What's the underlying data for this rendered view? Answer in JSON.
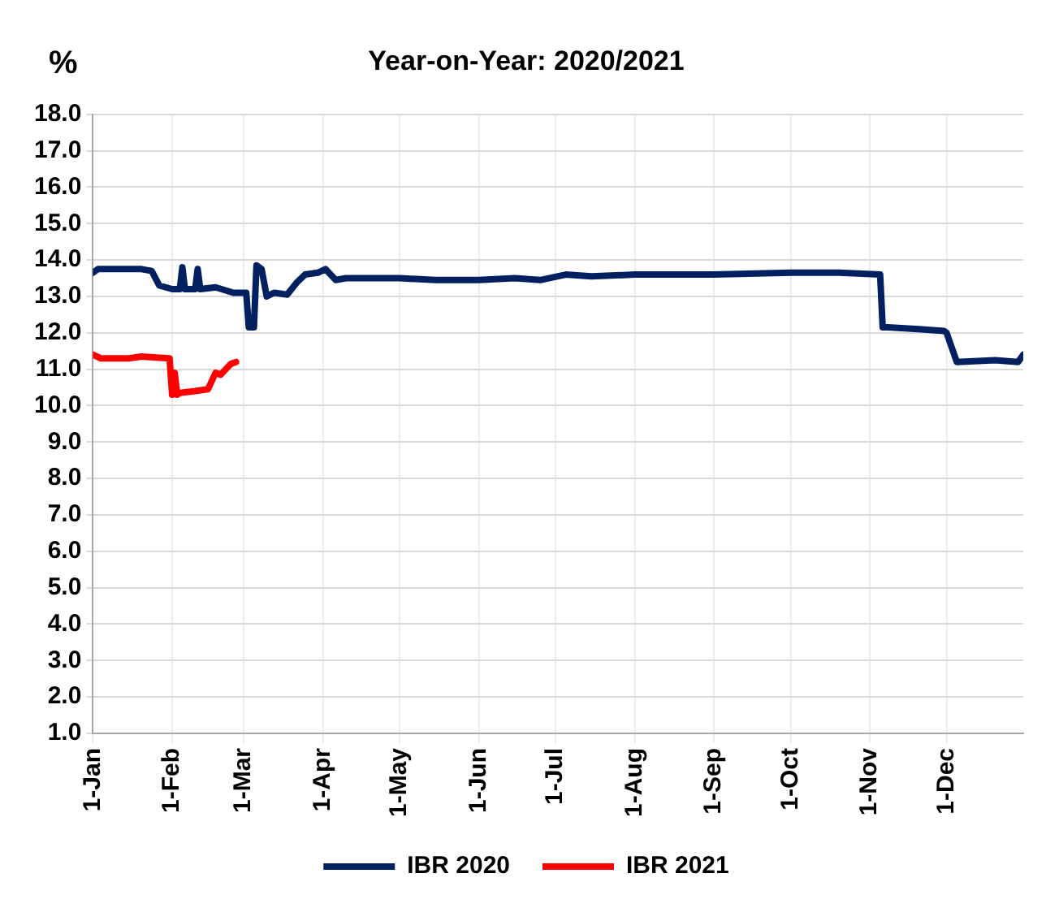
{
  "chart_data": {
    "type": "line",
    "title": "Year-on-Year: 2020/2021",
    "ylabel": "%",
    "xlim": [
      "--01-01",
      "--12-31"
    ],
    "xticks": [
      {
        "value": "--01-01",
        "label": "1-Jan"
      },
      {
        "value": "--02-01",
        "label": "1-Feb"
      },
      {
        "value": "--03-01",
        "label": "1-Mar"
      },
      {
        "value": "--04-01",
        "label": "1-Apr"
      },
      {
        "value": "--05-01",
        "label": "1-May"
      },
      {
        "value": "--06-01",
        "label": "1-Jun"
      },
      {
        "value": "--07-01",
        "label": "1-Jul"
      },
      {
        "value": "--08-01",
        "label": "1-Aug"
      },
      {
        "value": "--09-01",
        "label": "1-Sep"
      },
      {
        "value": "--10-01",
        "label": "1-Oct"
      },
      {
        "value": "--11-01",
        "label": "1-Nov"
      },
      {
        "value": "--12-01",
        "label": "1-Dec"
      }
    ],
    "ylim": [
      1,
      18
    ],
    "yticks": [
      {
        "value": 1,
        "label": "1.0"
      },
      {
        "value": 2,
        "label": "2.0"
      },
      {
        "value": 3,
        "label": "3.0"
      },
      {
        "value": 4,
        "label": "4.0"
      },
      {
        "value": 5,
        "label": "5.0"
      },
      {
        "value": 6,
        "label": "6.0"
      },
      {
        "value": 7,
        "label": "7.0"
      },
      {
        "value": 8,
        "label": "8.0"
      },
      {
        "value": 9,
        "label": "9.0"
      },
      {
        "value": 10,
        "label": "10.0"
      },
      {
        "value": 11,
        "label": "11.0"
      },
      {
        "value": 12,
        "label": "12.0"
      },
      {
        "value": 13,
        "label": "13.0"
      },
      {
        "value": 14,
        "label": "14.0"
      },
      {
        "value": 15,
        "label": "15.0"
      },
      {
        "value": 16,
        "label": "16.0"
      },
      {
        "value": 17,
        "label": "17.0"
      },
      {
        "value": 18,
        "label": "18.0"
      }
    ],
    "grid": true,
    "legend": "bottom",
    "marker": "none",
    "line_style": "solid",
    "series": [
      {
        "name": "IBR 2020",
        "color": "#002060",
        "x": [
          "--01-01",
          "--01-03",
          "--01-10",
          "--01-20",
          "--01-24",
          "--01-27",
          "--02-01",
          "--02-04",
          "--02-05",
          "--02-06",
          "--02-10",
          "--02-11",
          "--02-12",
          "--02-18",
          "--02-25",
          "--03-02",
          "--03-03",
          "--03-05",
          "--03-06",
          "--03-08",
          "--03-10",
          "--03-13",
          "--03-18",
          "--03-22",
          "--03-25",
          "--03-30",
          "--04-02",
          "--04-06",
          "--04-10",
          "--04-20",
          "--05-01",
          "--05-15",
          "--06-01",
          "--06-15",
          "--06-25",
          "--07-05",
          "--07-15",
          "--08-01",
          "--09-01",
          "--10-01",
          "--10-20",
          "--11-05",
          "--11-06",
          "--11-08",
          "--11-20",
          "--11-30",
          "--12-01",
          "--12-03",
          "--12-05",
          "--12-20",
          "--12-29",
          "--12-31"
        ],
        "values": [
          13.65,
          13.75,
          13.75,
          13.75,
          13.7,
          13.3,
          13.2,
          13.2,
          13.8,
          13.2,
          13.2,
          13.75,
          13.2,
          13.25,
          13.1,
          13.1,
          12.15,
          12.15,
          13.85,
          13.75,
          13.0,
          13.1,
          13.05,
          13.4,
          13.6,
          13.65,
          13.75,
          13.45,
          13.5,
          13.5,
          13.5,
          13.45,
          13.45,
          13.5,
          13.45,
          13.6,
          13.55,
          13.6,
          13.6,
          13.65,
          13.65,
          13.6,
          12.15,
          12.15,
          12.1,
          12.05,
          12.0,
          11.6,
          11.2,
          11.25,
          11.2,
          11.4
        ]
      },
      {
        "name": "IBR 2021",
        "color": "#ff0000",
        "x": [
          "--01-01",
          "--01-04",
          "--01-15",
          "--01-20",
          "--01-31",
          "--02-01",
          "--02-02",
          "--02-03",
          "--02-04",
          "--02-10",
          "--02-15",
          "--02-18",
          "--02-20",
          "--02-22",
          "--02-24",
          "--02-26"
        ],
        "values": [
          11.4,
          11.3,
          11.3,
          11.35,
          11.3,
          10.3,
          10.9,
          10.3,
          10.35,
          10.4,
          10.45,
          10.9,
          10.85,
          11.0,
          11.15,
          11.2
        ]
      }
    ]
  }
}
